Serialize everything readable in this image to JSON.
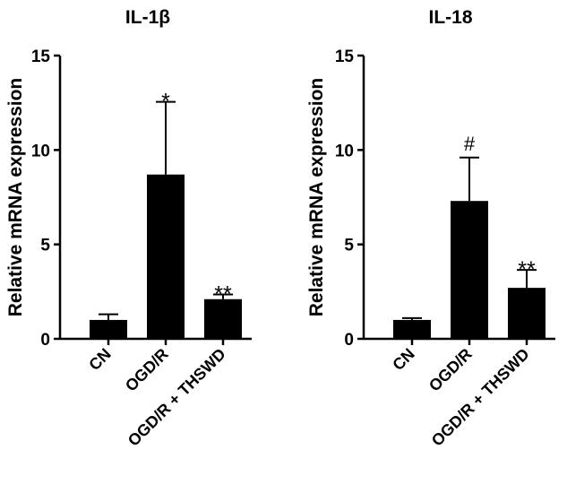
{
  "chart_data": [
    {
      "type": "bar",
      "title": "IL-1β",
      "ylabel": "Relative mRNA expression",
      "xlabel": "",
      "categories": [
        "CN",
        "OGD/R",
        "OGD/R + THSWD"
      ],
      "values": [
        1.0,
        8.7,
        2.1
      ],
      "error_upper": [
        1.3,
        12.55,
        2.35
      ],
      "annotations": [
        "",
        "*",
        "**"
      ],
      "ylim": [
        0,
        15
      ],
      "yticks": [
        "0",
        "5",
        "10",
        "15"
      ],
      "grid": false,
      "bar_color": "#000000"
    },
    {
      "type": "bar",
      "title": "IL-18",
      "ylabel": "Relative mRNA expression",
      "xlabel": "",
      "categories": [
        "CN",
        "OGD/R",
        "OGD/R + THSWD"
      ],
      "values": [
        1.0,
        7.3,
        2.7
      ],
      "error_upper": [
        1.1,
        9.6,
        3.65
      ],
      "annotations": [
        "",
        "#",
        "**"
      ],
      "ylim": [
        0,
        15
      ],
      "yticks": [
        "0",
        "5",
        "10",
        "15"
      ],
      "grid": false,
      "bar_color": "#000000"
    }
  ]
}
